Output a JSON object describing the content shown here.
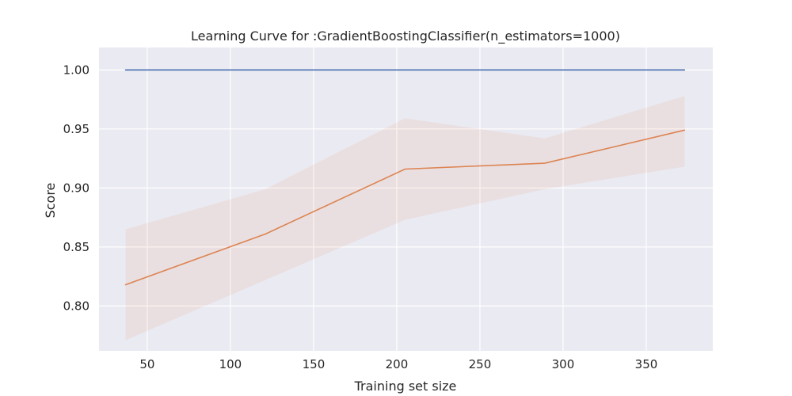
{
  "chart_data": {
    "type": "line",
    "title": "Learning Curve for :GradientBoostingClassifier(n_estimators=1000)",
    "xlabel": "Training set size",
    "ylabel": "Score",
    "xlim": [
      21,
      390
    ],
    "ylim": [
      0.762,
      1.019
    ],
    "xticks": [
      50,
      100,
      150,
      200,
      250,
      300,
      350
    ],
    "xtick_labels": [
      "50",
      "100",
      "150",
      "200",
      "250",
      "300",
      "350"
    ],
    "yticks": [
      0.8,
      0.85,
      0.9,
      0.95,
      1.0
    ],
    "ytick_labels": [
      "0.80",
      "0.85",
      "0.90",
      "0.95",
      "1.00"
    ],
    "grid": true,
    "x": [
      37,
      121,
      205,
      289,
      373
    ],
    "series": [
      {
        "values": [
          1.0,
          1.0,
          1.0,
          1.0,
          1.0
        ],
        "band_low": [
          1.0,
          1.0,
          1.0,
          1.0,
          1.0
        ],
        "band_high": [
          1.0,
          1.0,
          1.0,
          1.0,
          1.0
        ],
        "color": "#4c72b0",
        "band_color": "#4c72b0"
      },
      {
        "values": [
          0.818,
          0.861,
          0.916,
          0.921,
          0.949
        ],
        "band_low": [
          0.771,
          0.822,
          0.873,
          0.899,
          0.918
        ],
        "band_high": [
          0.865,
          0.899,
          0.959,
          0.942,
          0.978
        ],
        "color": "#dd8452",
        "band_color": "#dd8452"
      }
    ],
    "colors": {
      "background": "#eaeaf2",
      "grid": "#ffffff",
      "text": "#262626"
    }
  }
}
